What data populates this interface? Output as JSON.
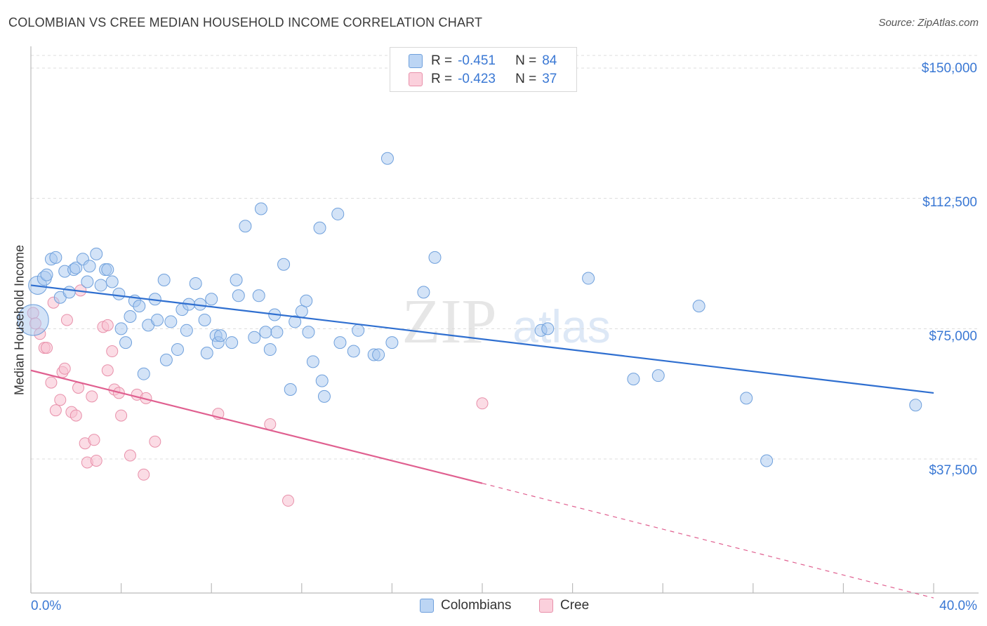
{
  "title": "COLOMBIAN VS CREE MEDIAN HOUSEHOLD INCOME CORRELATION CHART",
  "source": "Source: ZipAtlas.com",
  "watermark": "ZIPatlas",
  "legend_top": {
    "rows": [
      {
        "r_label": "R =",
        "r_value": "-0.451",
        "n_label": "N =",
        "n_value": "84",
        "color": "#a8c8f0",
        "border": "#6fa0dc"
      },
      {
        "r_label": "R =",
        "r_value": "-0.423",
        "n_label": "N =",
        "n_value": "37",
        "color": "#f8c0d0",
        "border": "#e890aa"
      }
    ]
  },
  "legend_bottom": [
    {
      "label": "Colombians",
      "color": "#a8c8f0",
      "border": "#6fa0dc"
    },
    {
      "label": "Cree",
      "color": "#f8c0d0",
      "border": "#e890aa"
    }
  ],
  "colors": {
    "blue_line": "#2f6fd0",
    "pink_line": "#e06090",
    "axis_text": "#3a78d4",
    "grid": "#dcdcdc"
  },
  "chart_data": {
    "type": "scatter",
    "title": "COLOMBIAN VS CREE MEDIAN HOUSEHOLD INCOME CORRELATION CHART",
    "xlabel": "",
    "ylabel": "Median Household Income",
    "xlim": [
      0,
      40
    ],
    "ylim": [
      0,
      155000
    ],
    "x_tick_labels": [
      "0.0%",
      "40.0%"
    ],
    "y_ticks": [
      37500,
      75000,
      112500,
      150000
    ],
    "y_tick_labels": [
      "$37,500",
      "$75,000",
      "$112,500",
      "$150,000"
    ],
    "grid": true,
    "legend_position": "top-center",
    "series": [
      {
        "name": "Colombians",
        "trend": {
          "x0": 0,
          "y0": 87500,
          "x1": 40,
          "y1": 56500
        },
        "points": [
          [
            0.1,
            77500
          ],
          [
            0.3,
            87500
          ],
          [
            0.6,
            89500
          ],
          [
            0.7,
            90500
          ],
          [
            0.9,
            95000
          ],
          [
            1.1,
            95500
          ],
          [
            1.3,
            84000
          ],
          [
            1.5,
            91500
          ],
          [
            1.7,
            85500
          ],
          [
            1.9,
            92000
          ],
          [
            2.0,
            92500
          ],
          [
            2.3,
            95000
          ],
          [
            2.5,
            88500
          ],
          [
            2.6,
            93000
          ],
          [
            2.9,
            96500
          ],
          [
            3.1,
            87500
          ],
          [
            3.3,
            92000
          ],
          [
            3.4,
            92000
          ],
          [
            3.6,
            88500
          ],
          [
            3.9,
            85000
          ],
          [
            4.0,
            75000
          ],
          [
            4.2,
            71000
          ],
          [
            4.4,
            78500
          ],
          [
            4.6,
            83000
          ],
          [
            4.8,
            81500
          ],
          [
            5.0,
            62000
          ],
          [
            5.2,
            76000
          ],
          [
            5.5,
            83500
          ],
          [
            5.6,
            77500
          ],
          [
            5.9,
            89000
          ],
          [
            6.0,
            66000
          ],
          [
            6.2,
            77000
          ],
          [
            6.5,
            69000
          ],
          [
            6.7,
            80500
          ],
          [
            6.9,
            74500
          ],
          [
            7.0,
            82000
          ],
          [
            7.3,
            88000
          ],
          [
            7.5,
            82000
          ],
          [
            7.7,
            77500
          ],
          [
            7.8,
            68000
          ],
          [
            8.0,
            83500
          ],
          [
            8.2,
            73000
          ],
          [
            8.3,
            71000
          ],
          [
            8.4,
            73000
          ],
          [
            8.9,
            71000
          ],
          [
            9.1,
            89000
          ],
          [
            9.2,
            84500
          ],
          [
            9.5,
            104500
          ],
          [
            9.9,
            72500
          ],
          [
            10.1,
            84500
          ],
          [
            10.2,
            109500
          ],
          [
            10.4,
            74000
          ],
          [
            10.6,
            69000
          ],
          [
            10.8,
            79000
          ],
          [
            10.9,
            74000
          ],
          [
            11.2,
            93500
          ],
          [
            11.5,
            57500
          ],
          [
            11.7,
            77000
          ],
          [
            12.0,
            80000
          ],
          [
            12.2,
            83000
          ],
          [
            12.3,
            74000
          ],
          [
            12.5,
            65500
          ],
          [
            12.8,
            104000
          ],
          [
            12.9,
            60000
          ],
          [
            13.0,
            55500
          ],
          [
            13.6,
            108000
          ],
          [
            13.7,
            71000
          ],
          [
            14.3,
            68500
          ],
          [
            14.5,
            74500
          ],
          [
            15.2,
            67500
          ],
          [
            15.4,
            67500
          ],
          [
            15.8,
            124000
          ],
          [
            16.0,
            71000
          ],
          [
            17.4,
            85500
          ],
          [
            17.9,
            95500
          ],
          [
            22.6,
            74500
          ],
          [
            22.9,
            75000
          ],
          [
            24.7,
            89500
          ],
          [
            26.7,
            60500
          ],
          [
            27.8,
            61500
          ],
          [
            29.6,
            81500
          ],
          [
            31.7,
            55000
          ],
          [
            32.6,
            37000
          ],
          [
            39.2,
            53000
          ]
        ]
      },
      {
        "name": "Cree",
        "trend": {
          "x0": 0,
          "y0": 63000,
          "x1": 20,
          "y1": 30500,
          "dashed_to": {
            "x": 40,
            "y": -2500
          }
        },
        "points": [
          [
            0.1,
            79500
          ],
          [
            0.2,
            76500
          ],
          [
            0.4,
            73500
          ],
          [
            0.6,
            69500
          ],
          [
            0.7,
            69500
          ],
          [
            0.9,
            59500
          ],
          [
            1.0,
            82500
          ],
          [
            1.1,
            51500
          ],
          [
            1.3,
            54500
          ],
          [
            1.4,
            62500
          ],
          [
            1.5,
            63500
          ],
          [
            1.6,
            77500
          ],
          [
            1.8,
            51000
          ],
          [
            2.0,
            50000
          ],
          [
            2.1,
            58000
          ],
          [
            2.2,
            86000
          ],
          [
            2.4,
            42000
          ],
          [
            2.5,
            36500
          ],
          [
            2.7,
            55500
          ],
          [
            2.8,
            43000
          ],
          [
            2.9,
            37000
          ],
          [
            3.2,
            75500
          ],
          [
            3.4,
            76000
          ],
          [
            3.4,
            63000
          ],
          [
            3.6,
            68500
          ],
          [
            3.7,
            57500
          ],
          [
            3.9,
            56500
          ],
          [
            4.0,
            50000
          ],
          [
            4.4,
            38500
          ],
          [
            4.7,
            56000
          ],
          [
            5.0,
            33000
          ],
          [
            5.1,
            55000
          ],
          [
            5.5,
            42500
          ],
          [
            8.3,
            50500
          ],
          [
            10.6,
            47500
          ],
          [
            11.4,
            25500
          ],
          [
            20.0,
            53500
          ]
        ]
      }
    ]
  }
}
